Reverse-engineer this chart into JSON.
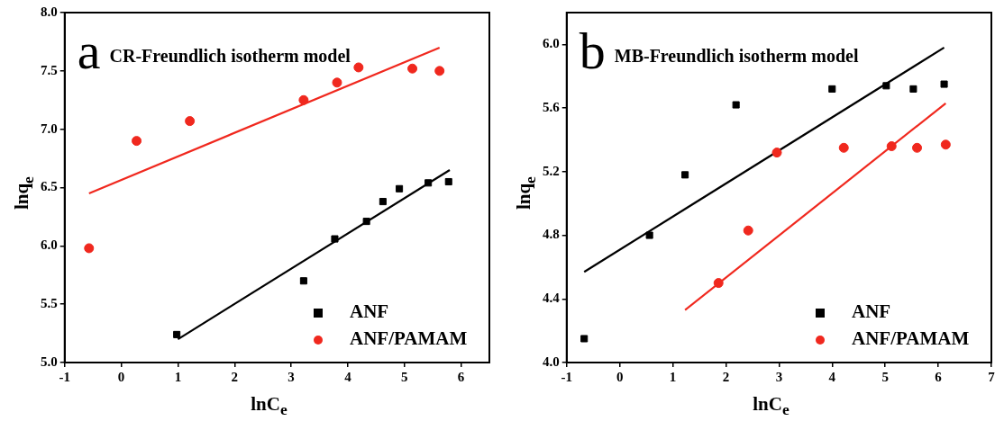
{
  "chart_data": [
    {
      "type": "scatter",
      "title": "CR-Freundlich isotherm model",
      "annotations": [
        "a"
      ],
      "xlabel": "lnC$_{e}$",
      "ylabel": "lnq$_{e}$",
      "xlim": [
        -1,
        6.5
      ],
      "xticks": [
        -1,
        0,
        1,
        2,
        3,
        4,
        5,
        6
      ],
      "ylim": [
        5.0,
        8.0
      ],
      "yticks": [
        {
          "value": 5.0,
          "label": "5.0"
        },
        {
          "value": 5.5,
          "label": "5.5"
        },
        {
          "value": 6.0,
          "label": "6.0"
        },
        {
          "value": 6.5,
          "label": "6.5"
        },
        {
          "value": 7.0,
          "label": "7.0"
        },
        {
          "value": 7.5,
          "label": "7.5"
        },
        {
          "value": 8.0,
          "label": "8.0"
        }
      ],
      "legend": "bottom right",
      "series": [
        {
          "name": "ANF",
          "color": "#000000",
          "marker": "square",
          "x": [
            0.98,
            3.22,
            3.77,
            4.33,
            4.62,
            4.91,
            5.42,
            5.78
          ],
          "values": [
            5.24,
            5.7,
            6.06,
            6.21,
            6.38,
            6.49,
            6.54,
            6.55
          ]
        },
        {
          "name": "ANF/PAMAM",
          "color": "#f0281e",
          "marker": "circle",
          "x": [
            -0.57,
            0.27,
            1.21,
            3.22,
            3.81,
            4.19,
            5.14,
            5.62
          ],
          "values": [
            5.98,
            6.9,
            7.07,
            7.25,
            7.4,
            7.53,
            7.52,
            7.5
          ]
        },
        {
          "type": "line",
          "color": "#000000",
          "marker": "none",
          "x": [
            1.0,
            5.8
          ],
          "values": [
            5.2,
            6.65
          ]
        },
        {
          "type": "line",
          "color": "#f0281e",
          "marker": "none",
          "x": [
            -0.57,
            5.62
          ],
          "values": [
            6.45,
            7.7
          ]
        }
      ]
    },
    {
      "type": "scatter",
      "title": "MB-Freundlich isotherm model",
      "annotations": [
        "b"
      ],
      "xlabel": "lnC$_{e}$",
      "ylabel": "lnq$_{e}$",
      "xlim": [
        -1,
        7
      ],
      "xticks": [
        -1,
        0,
        1,
        2,
        3,
        4,
        5,
        6,
        7
      ],
      "ylim": [
        4.0,
        6.2
      ],
      "yticks": [
        {
          "value": 4.0,
          "label": "4.0"
        },
        {
          "value": 4.4,
          "label": "4.4"
        },
        {
          "value": 4.8,
          "label": "4.8"
        },
        {
          "value": 5.2,
          "label": "5.2"
        },
        {
          "value": 5.6,
          "label": "5.6"
        },
        {
          "value": 6.0,
          "label": "6.0"
        }
      ],
      "legend": "bottom right",
      "series": [
        {
          "name": "ANF",
          "color": "#000000",
          "marker": "square",
          "x": [
            -0.67,
            0.56,
            1.23,
            2.19,
            4.0,
            5.02,
            5.53,
            6.11
          ],
          "values": [
            4.15,
            4.8,
            5.18,
            5.62,
            5.72,
            5.74,
            5.72,
            5.75
          ]
        },
        {
          "name": "ANF/PAMAM",
          "color": "#f0281e",
          "marker": "circle",
          "x": [
            1.86,
            2.42,
            2.96,
            4.22,
            5.12,
            5.6,
            6.14
          ],
          "values": [
            4.5,
            4.83,
            5.32,
            5.35,
            5.36,
            5.35,
            5.37
          ]
        },
        {
          "type": "line",
          "color": "#000000",
          "marker": "none",
          "x": [
            -0.67,
            6.11
          ],
          "values": [
            4.57,
            5.98
          ]
        },
        {
          "type": "line",
          "color": "#f0281e",
          "marker": "none",
          "x": [
            1.23,
            6.14
          ],
          "values": [
            4.33,
            5.63
          ]
        }
      ]
    }
  ]
}
